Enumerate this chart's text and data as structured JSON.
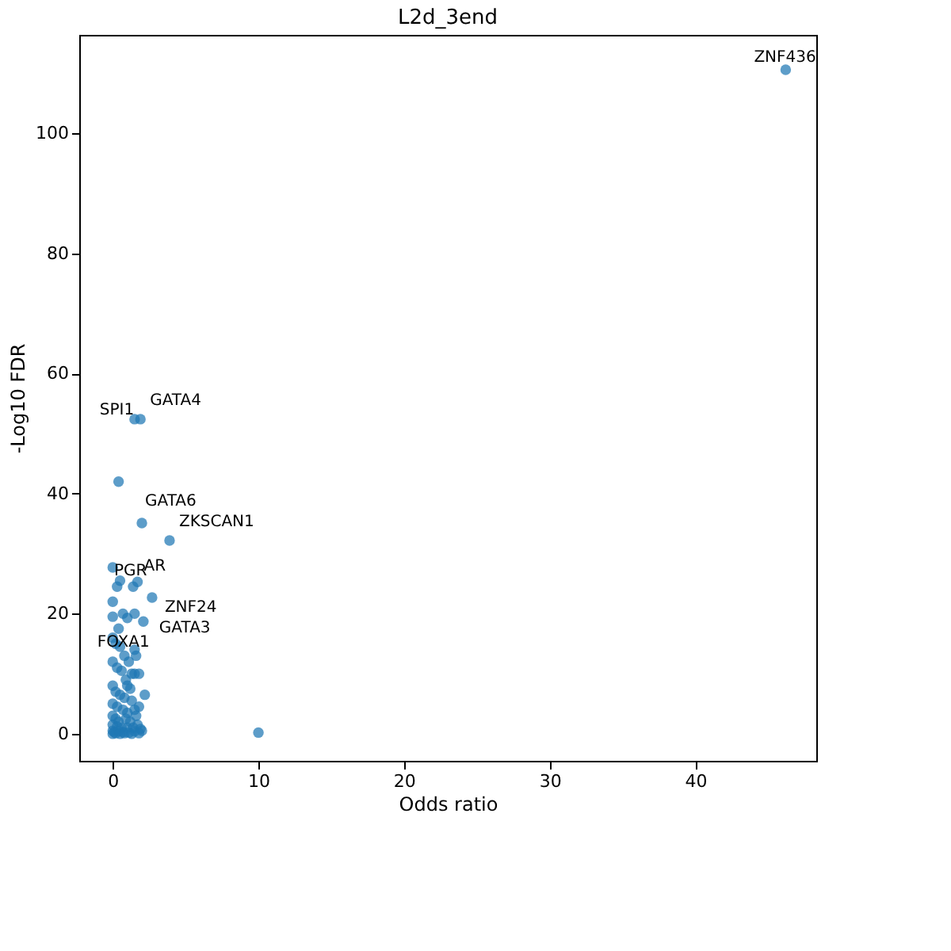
{
  "chart_data": {
    "type": "scatter",
    "title": "L2d_3end",
    "xlabel": "Odds ratio",
    "ylabel": "-Log10 FDR",
    "xlim": [
      -2.3,
      48.3
    ],
    "ylim": [
      -4.5,
      116.4
    ],
    "xticks": [
      0,
      10,
      20,
      30,
      40
    ],
    "yticks": [
      0,
      20,
      40,
      60,
      80,
      100
    ],
    "grid": false,
    "marker": "circle",
    "series": [
      {
        "color": "#1f77b4",
        "x": [
          46.2,
          1.9,
          1.5,
          0.4,
          2.0,
          3.9,
          0.0,
          0.5,
          0.3,
          1.4,
          1.7,
          2.7,
          0.0,
          0.7,
          1.5,
          1.0,
          2.1,
          0.0,
          0.4,
          1.5,
          1.6,
          1.5,
          1.3,
          1.8,
          1.0,
          2.2,
          1.8,
          1.5,
          10.0,
          0.0,
          0.2,
          0.5,
          0.8,
          1.1,
          0.0,
          0.3,
          0.6,
          0.9,
          1.2,
          0.0,
          0.2,
          0.5,
          0.8,
          1.3,
          0.0,
          0.3,
          0.7,
          1.0,
          1.6,
          0.0,
          0.2,
          0.4,
          0.9,
          1.2,
          1.7,
          0.0,
          0.3,
          0.6,
          1.0,
          1.4,
          1.9,
          0.0,
          0.1,
          0.4,
          0.7,
          1.1,
          1.5,
          2.0,
          0.0,
          0.2,
          0.5,
          0.8,
          1.3,
          1.8
        ],
        "values": [
          110.6,
          52.4,
          52.4,
          42.0,
          35.1,
          32.2,
          27.7,
          25.5,
          24.5,
          24.5,
          25.3,
          22.7,
          22.0,
          20.0,
          20.0,
          19.3,
          18.7,
          19.5,
          17.5,
          14.0,
          13.0,
          10.0,
          10.0,
          10.0,
          8.0,
          6.5,
          4.5,
          4.0,
          0.2,
          16.0,
          15.0,
          14.5,
          13.0,
          12.0,
          12.0,
          11.0,
          10.5,
          9.0,
          7.5,
          8.0,
          7.0,
          6.5,
          6.0,
          5.5,
          5.0,
          4.5,
          4.0,
          3.5,
          3.0,
          3.0,
          2.5,
          2.0,
          2.5,
          2.0,
          1.5,
          1.5,
          1.2,
          1.0,
          1.0,
          1.0,
          0.8,
          0.5,
          0.3,
          0.4,
          0.3,
          0.2,
          0.4,
          0.5,
          0.0,
          0.1,
          0.0,
          0.1,
          0.0,
          0.1
        ]
      }
    ],
    "annotations": [
      {
        "text": "ZNF436",
        "x": 46.2,
        "y": 110.6
      },
      {
        "text": "GATA4",
        "x": 1.9,
        "y": 52.4
      },
      {
        "text": "SPI1",
        "x": 1.5,
        "y": 52.4
      },
      {
        "text": "GATA6",
        "x": 2.0,
        "y": 35.1
      },
      {
        "text": "ZKSCAN1",
        "x": 3.9,
        "y": 32.2
      },
      {
        "text": "AR",
        "x": 1.7,
        "y": 25.3
      },
      {
        "text": "PGR",
        "x": 1.4,
        "y": 24.5
      },
      {
        "text": "ZNF24",
        "x": 2.7,
        "y": 22.7
      },
      {
        "text": "FOXA1",
        "x": 1.0,
        "y": 19.3
      },
      {
        "text": "GATA3",
        "x": 2.1,
        "y": 18.7
      }
    ]
  }
}
